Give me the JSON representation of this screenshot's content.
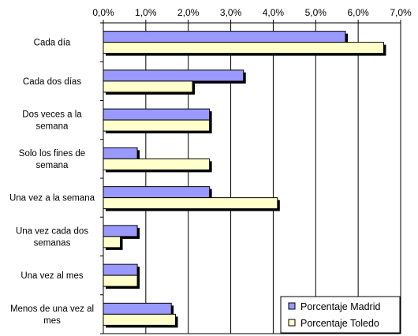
{
  "chart_data": {
    "type": "bar",
    "orientation": "horizontal",
    "title": "",
    "xlabel": "",
    "ylabel": "",
    "xlim": [
      0,
      7
    ],
    "x_ticks": [
      "0,0%",
      "1,0%",
      "2,0%",
      "3,0%",
      "4,0%",
      "5,0%",
      "6,0%",
      "7,0%"
    ],
    "grid": true,
    "legend_position": "bottom-right",
    "categories": [
      [
        "Cada día"
      ],
      [
        "Cada dos días"
      ],
      [
        "Dos veces a la",
        "semana"
      ],
      [
        "Solo los fines de",
        "semana"
      ],
      [
        "Una vez a la semana"
      ],
      [
        "Una vez cada dos",
        "semanas"
      ],
      [
        "Una vez al mes"
      ],
      [
        "Menos de una vez al",
        "mes"
      ]
    ],
    "series": [
      {
        "name": "Porcentaje Madrid",
        "color": "#9999ff",
        "values": [
          5.7,
          3.3,
          2.5,
          0.8,
          2.5,
          0.8,
          0.8,
          1.6
        ]
      },
      {
        "name": "Porcentaje Toledo",
        "color": "#ffffcc",
        "values": [
          6.6,
          2.1,
          2.5,
          2.5,
          4.1,
          0.4,
          0.8,
          1.7
        ]
      }
    ]
  }
}
